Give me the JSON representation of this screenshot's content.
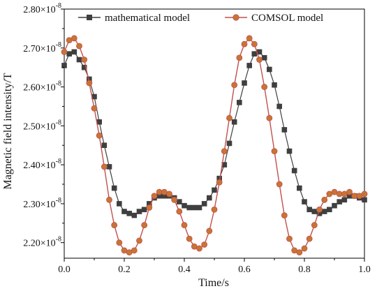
{
  "chart_data": {
    "type": "line",
    "xlabel": "Time/s",
    "ylabel": "Magnetic field intensity/T",
    "xlim": [
      0.0,
      1.0
    ],
    "ylim": [
      2.16e-08,
      2.8e-08
    ],
    "x_ticks": [
      0.0,
      0.2,
      0.4,
      0.6,
      0.8,
      1.0
    ],
    "x_tick_labels": [
      "0.0",
      "0.2",
      "0.4",
      "0.6",
      "0.8",
      "1.0"
    ],
    "y_ticks": [
      2.2e-08,
      2.3e-08,
      2.4e-08,
      2.5e-08,
      2.6e-08,
      2.7e-08,
      2.8e-08
    ],
    "y_tick_labels": [
      {
        "mantissa": "2.20",
        "exp": "-8"
      },
      {
        "mantissa": "2.30",
        "exp": "-8"
      },
      {
        "mantissa": "2.40",
        "exp": "-8"
      },
      {
        "mantissa": "2.50",
        "exp": "-8"
      },
      {
        "mantissa": "2.60",
        "exp": "-8"
      },
      {
        "mantissa": "2.70",
        "exp": "-8"
      },
      {
        "mantissa": "2.80",
        "exp": "-8"
      }
    ],
    "times_symbol": "×10",
    "legend_position": "top",
    "series": [
      {
        "name": "mathematical model",
        "color": "#3f3f3f",
        "marker": "square",
        "x": [
          0.0,
          0.0167,
          0.0333,
          0.05,
          0.0667,
          0.0833,
          0.1,
          0.1167,
          0.1333,
          0.15,
          0.1667,
          0.1833,
          0.2,
          0.2167,
          0.2333,
          0.25,
          0.2667,
          0.2833,
          0.3,
          0.3167,
          0.3333,
          0.35,
          0.3667,
          0.3833,
          0.4,
          0.4167,
          0.4333,
          0.45,
          0.4667,
          0.4833,
          0.5,
          0.5167,
          0.5333,
          0.55,
          0.5667,
          0.5833,
          0.6,
          0.6167,
          0.6333,
          0.65,
          0.6667,
          0.6833,
          0.7,
          0.7167,
          0.7333,
          0.75,
          0.7667,
          0.7833,
          0.8,
          0.8167,
          0.8333,
          0.85,
          0.8667,
          0.8833,
          0.9,
          0.9167,
          0.9333,
          0.95,
          0.9667,
          0.9833,
          1.0
        ],
        "y": [
          2.655e-08,
          2.685e-08,
          2.69e-08,
          2.67e-08,
          2.65e-08,
          2.62e-08,
          2.575e-08,
          2.51e-08,
          2.45e-08,
          2.395e-08,
          2.34e-08,
          2.3e-08,
          2.28e-08,
          2.275e-08,
          2.27e-08,
          2.28e-08,
          2.285e-08,
          2.3e-08,
          2.315e-08,
          2.32e-08,
          2.32e-08,
          2.32e-08,
          2.315e-08,
          2.305e-08,
          2.295e-08,
          2.29e-08,
          2.29e-08,
          2.29e-08,
          2.3e-08,
          2.315e-08,
          2.335e-08,
          2.365e-08,
          2.4e-08,
          2.455e-08,
          2.51e-08,
          2.56e-08,
          2.61e-08,
          2.655e-08,
          2.685e-08,
          2.69e-08,
          2.675e-08,
          2.645e-08,
          2.605e-08,
          2.55e-08,
          2.49e-08,
          2.435e-08,
          2.385e-08,
          2.34e-08,
          2.305e-08,
          2.285e-08,
          2.28e-08,
          2.275e-08,
          2.28e-08,
          2.285e-08,
          2.295e-08,
          2.305e-08,
          2.31e-08,
          2.32e-08,
          2.32e-08,
          2.315e-08,
          2.31e-08
        ]
      },
      {
        "name": "COMSOL model",
        "color": "#c0504d",
        "marker_fill": "#c87533",
        "marker": "circle",
        "x": [
          0.0,
          0.0167,
          0.0333,
          0.05,
          0.0667,
          0.0833,
          0.1,
          0.1167,
          0.1333,
          0.15,
          0.1667,
          0.1833,
          0.2,
          0.2167,
          0.2333,
          0.25,
          0.2667,
          0.2833,
          0.3,
          0.3167,
          0.3333,
          0.35,
          0.3667,
          0.3833,
          0.4,
          0.4167,
          0.4333,
          0.45,
          0.4667,
          0.4833,
          0.5,
          0.5167,
          0.5333,
          0.55,
          0.5667,
          0.5833,
          0.6,
          0.6167,
          0.6333,
          0.65,
          0.6667,
          0.6833,
          0.7,
          0.7167,
          0.7333,
          0.75,
          0.7667,
          0.7833,
          0.8,
          0.8167,
          0.8333,
          0.85,
          0.8667,
          0.8833,
          0.9,
          0.9167,
          0.9333,
          0.95,
          0.9667,
          0.9833,
          1.0
        ],
        "y": [
          2.69e-08,
          2.72e-08,
          2.725e-08,
          2.705e-08,
          2.67e-08,
          2.61e-08,
          2.545e-08,
          2.475e-08,
          2.395e-08,
          2.31e-08,
          2.245e-08,
          2.2e-08,
          2.18e-08,
          2.175e-08,
          2.18e-08,
          2.205e-08,
          2.245e-08,
          2.29e-08,
          2.32e-08,
          2.33e-08,
          2.33e-08,
          2.325e-08,
          2.31e-08,
          2.28e-08,
          2.245e-08,
          2.21e-08,
          2.19e-08,
          2.185e-08,
          2.195e-08,
          2.23e-08,
          2.285e-08,
          2.355e-08,
          2.435e-08,
          2.52e-08,
          2.605e-08,
          2.675e-08,
          2.71e-08,
          2.725e-08,
          2.71e-08,
          2.67e-08,
          2.6e-08,
          2.52e-08,
          2.435e-08,
          2.35e-08,
          2.27e-08,
          2.21e-08,
          2.18e-08,
          2.175e-08,
          2.185e-08,
          2.21e-08,
          2.245e-08,
          2.285e-08,
          2.31e-08,
          2.325e-08,
          2.33e-08,
          2.325e-08,
          2.325e-08,
          2.33e-08,
          2.32e-08,
          2.32e-08,
          2.325e-08
        ]
      }
    ]
  }
}
